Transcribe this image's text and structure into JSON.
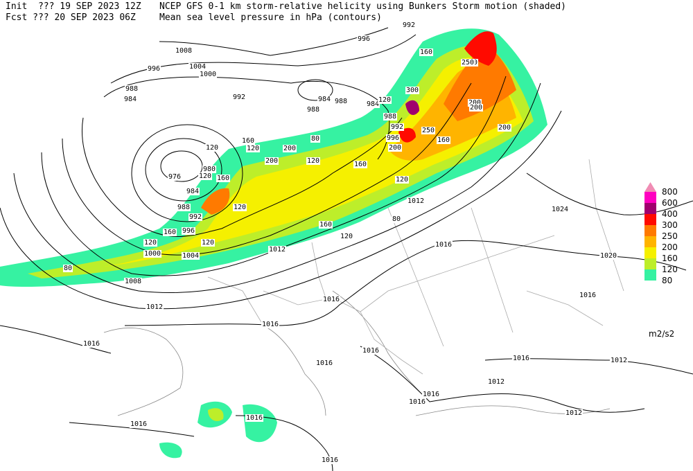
{
  "header": {
    "init": "Init  ??? 19 SEP 2023 12Z",
    "title": "NCEP GFS 0-1 km storm-relative helicity using Bunkers Storm motion (shaded)",
    "fcst": "Fcst ??? 20 SEP 2023 06Z",
    "subtitle": "Mean sea level pressure in hPa (contours)"
  },
  "legend": {
    "levels": [
      {
        "label": "800",
        "color": "#f08cb4"
      },
      {
        "label": "600",
        "color": "#ff00c0"
      },
      {
        "label": "400",
        "color": "#a0006e"
      },
      {
        "label": "300",
        "color": "#ff0a00"
      },
      {
        "label": "250",
        "color": "#ff7a00"
      },
      {
        "label": "200",
        "color": "#ffb400"
      },
      {
        "label": "160",
        "color": "#f5f000"
      },
      {
        "label": "120",
        "color": "#bdee2a"
      },
      {
        "label": "80",
        "color": "#36f2a2"
      }
    ],
    "unit": "m2/s2"
  },
  "isobar_labels": [
    "992",
    "996",
    "1008",
    "1004",
    "1000",
    "996",
    "988",
    "984",
    "992",
    "984",
    "988",
    "988",
    "984",
    "988",
    "992",
    "996",
    "976",
    "980",
    "984",
    "988",
    "992",
    "996",
    "1000",
    "1004",
    "1008",
    "1012",
    "1012",
    "1016",
    "1012",
    "1024",
    "1020",
    "1016",
    "1016",
    "1016",
    "1016",
    "1016",
    "1016",
    "1016",
    "1012",
    "1012",
    "1016",
    "1012",
    "1016",
    "1016",
    "1016",
    "1016"
  ],
  "shading_labels": [
    "160",
    "120",
    "120",
    "200",
    "80",
    "120",
    "200",
    "160",
    "120",
    "200",
    "160",
    "250",
    "200",
    "160",
    "120",
    "120",
    "80",
    "200",
    "250",
    "300",
    "160",
    "250",
    "200",
    "160",
    "120",
    "80",
    "120",
    "120",
    "160",
    "120"
  ]
}
